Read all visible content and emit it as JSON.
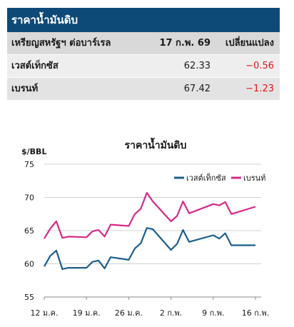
{
  "table": {
    "title": "ราคาน้ำมันดิบ",
    "header": {
      "label": "เหรียญสหรัฐฯ ต่อบาร์เรล",
      "date": "17 ก.พ. 69",
      "change": "เปลี่ยนแปลง"
    },
    "rows": [
      {
        "name": "เวสต์เท็กซัส",
        "price": "62.33",
        "change": "−0.56"
      },
      {
        "name": "เบรนท์",
        "price": "67.42",
        "change": "−1.23"
      }
    ],
    "negative_color": "#e0161b",
    "header_color": "#0e4a78"
  },
  "chart_data": {
    "type": "line",
    "title": "ราคาน้ำมันดิบ",
    "ylabel": "$/BBL",
    "ylim": [
      55,
      75
    ],
    "yticks": [
      55,
      60,
      65,
      70,
      75
    ],
    "xlim": [
      0,
      35
    ],
    "xticks": [
      {
        "pos": 0,
        "label": "12 ม.ค."
      },
      {
        "pos": 7,
        "label": "19 ม.ค."
      },
      {
        "pos": 14,
        "label": "26 ม.ค."
      },
      {
        "pos": 21,
        "label": "2 ก.พ."
      },
      {
        "pos": 28,
        "label": "9 ก.พ."
      },
      {
        "pos": 35,
        "label": "16 ก.พ."
      }
    ],
    "grid": "horizontal",
    "legend": "top-right",
    "series": [
      {
        "name": "เวสต์เท็กซัส",
        "color": "#1b5e8c",
        "x": [
          0,
          1,
          2,
          3,
          4,
          7,
          8,
          9,
          10,
          11,
          14,
          15,
          16,
          17,
          18,
          21,
          22,
          23,
          24,
          28,
          29,
          30,
          31,
          35
        ],
        "y": [
          59.6,
          61.2,
          62.0,
          59.2,
          59.4,
          59.4,
          60.3,
          60.5,
          59.3,
          61.0,
          60.6,
          62.3,
          63.1,
          65.4,
          65.2,
          62.1,
          63.0,
          65.1,
          63.3,
          64.3,
          63.8,
          64.6,
          62.8,
          62.8
        ]
      },
      {
        "name": "เบรนท์",
        "color": "#d62a8a",
        "x": [
          0,
          1,
          2,
          3,
          4,
          7,
          8,
          9,
          10,
          11,
          14,
          15,
          16,
          17,
          18,
          21,
          22,
          23,
          24,
          28,
          29,
          30,
          31,
          35
        ],
        "y": [
          63.8,
          65.3,
          66.4,
          63.9,
          64.1,
          64.0,
          64.9,
          65.1,
          64.1,
          65.9,
          65.7,
          67.5,
          68.3,
          70.7,
          69.4,
          66.4,
          67.2,
          69.4,
          67.6,
          69.0,
          68.8,
          69.3,
          67.5,
          68.6
        ]
      }
    ]
  }
}
